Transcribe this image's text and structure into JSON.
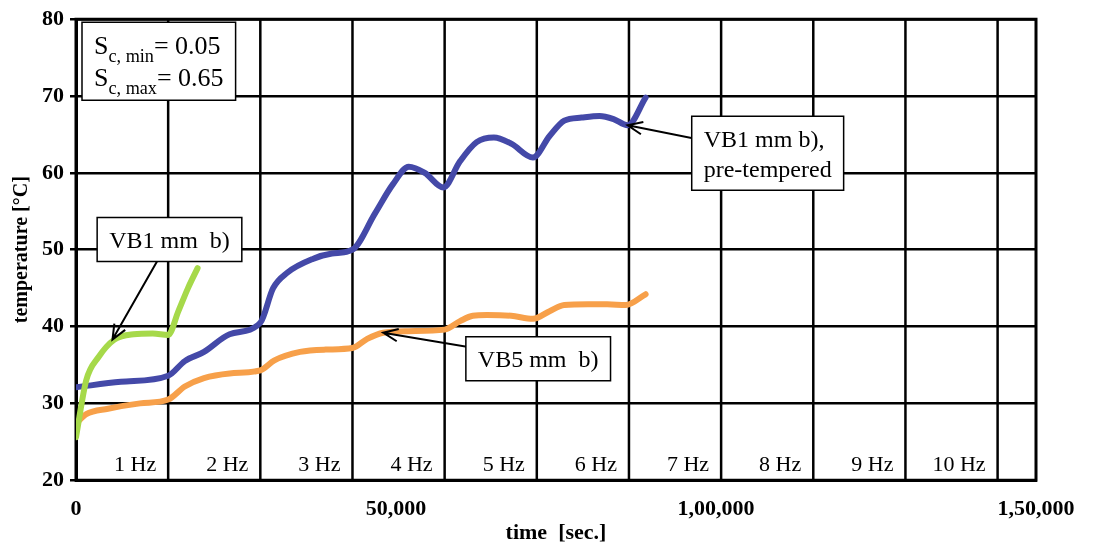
{
  "chart_data": {
    "type": "line",
    "xlabel": "time  [sec.]",
    "ylabel": "temperature [°C]",
    "xlim": [
      0,
      150000
    ],
    "xticks": [
      0,
      {
        "value": 50000,
        "label": "50,000"
      },
      {
        "value": 100000,
        "label": "1,00,000"
      },
      {
        "value": 150000,
        "label": "1,50,000"
      }
    ],
    "ylim": [
      20,
      80
    ],
    "yticks": [
      20,
      30,
      40,
      50,
      60,
      70,
      80
    ],
    "grid": "y",
    "legend": false,
    "marker": "none",
    "line_style": "solid",
    "series": [
      {
        "color": "#a6d94a",
        "x": [
          0,
          1600,
          3500,
          6000,
          9000,
          12000,
          14400,
          16000,
          17500,
          19000
        ],
        "values": [
          25.6,
          33,
          36,
          38.3,
          39,
          39.1,
          38.9,
          42,
          45,
          47.6
        ]
      },
      {
        "color": "#4449a8",
        "x": [
          0,
          7000,
          14400,
          17000,
          20000,
          24000,
          28800,
          30800,
          33000,
          37000,
          40000,
          43200,
          46700,
          49500,
          52000,
          54500,
          57400,
          60000,
          62600,
          65300,
          68000,
          71400,
          74000,
          76300,
          79000,
          81800,
          84000,
          86200,
          89000
        ],
        "values": [
          32.1,
          32.8,
          33.6,
          35.5,
          36.7,
          39,
          40.5,
          45,
          47,
          48.8,
          49.5,
          50,
          54.7,
          58.5,
          60.8,
          60,
          58.1,
          61.5,
          64,
          64.6,
          63.8,
          62,
          64.8,
          66.8,
          67.2,
          67.4,
          67,
          66.2,
          69.8
        ]
      },
      {
        "color": "#f7a04a",
        "x": [
          0,
          1600,
          5000,
          10000,
          14400,
          17000,
          20000,
          24000,
          28800,
          31000,
          35000,
          39000,
          43200,
          45500,
          48000,
          52000,
          57600,
          60000,
          62000,
          64200,
          68000,
          71400,
          74000,
          76300,
          80000,
          83000,
          85900,
          89000
        ],
        "values": [
          27.4,
          28.6,
          29.3,
          30,
          30.5,
          32.2,
          33.3,
          33.9,
          34.3,
          35.6,
          36.7,
          37,
          37.2,
          38.4,
          39.2,
          39.4,
          39.6,
          40.7,
          41.4,
          41.5,
          41.4,
          41,
          42,
          42.8,
          42.9,
          42.9,
          42.8,
          44.2
        ]
      }
    ],
    "ref_lines": [
      {
        "axis": "x",
        "value": 14400,
        "label": "1 Hz"
      },
      {
        "axis": "x",
        "value": 28800,
        "label": "2 Hz"
      },
      {
        "axis": "x",
        "value": 43200,
        "label": "3 Hz"
      },
      {
        "axis": "x",
        "value": 57600,
        "label": "4 Hz"
      },
      {
        "axis": "x",
        "value": 72000,
        "label": "5 Hz"
      },
      {
        "axis": "x",
        "value": 86400,
        "label": "6 Hz"
      },
      {
        "axis": "x",
        "value": 100800,
        "label": "7 Hz"
      },
      {
        "axis": "x",
        "value": 115200,
        "label": "8 Hz"
      },
      {
        "axis": "x",
        "value": 129600,
        "label": "9 Hz"
      },
      {
        "axis": "x",
        "value": 144000,
        "label": "10 Hz"
      }
    ],
    "annotations": [
      "S$_{c, min}$= 0.05\nS$_{c, max}$= 0.65",
      {
        "text": "VB1 mm  b)",
        "x": 5700,
        "y": 38.3
      },
      {
        "text": "VB1 mm b),\npre-tempered",
        "x": 86200,
        "y": 66.2
      },
      {
        "text": "VB5 mm  b)",
        "x": 48000,
        "y": 39.2
      }
    ]
  }
}
